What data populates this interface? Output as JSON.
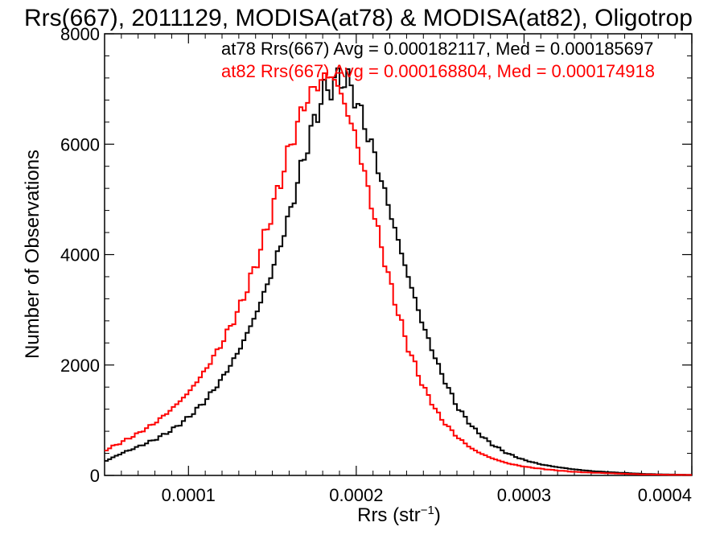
{
  "chart_data": {
    "type": "step",
    "title": "Rrs(667), 2011129, MODISA(at78) & MODISA(at82), Oligotrop",
    "xlabel": "Rrs (str",
    "xlabel_sup": "−1",
    "xlabel_close": ")",
    "ylabel": "Number of Observations",
    "xlim": [
      5e-05,
      0.0004
    ],
    "ylim": [
      0,
      8000
    ],
    "xticks": [
      0.0001,
      0.0002,
      0.0003,
      0.0004
    ],
    "xtick_labels": [
      "0.0001",
      "0.0002",
      "0.0003",
      "0.0004"
    ],
    "yticks": [
      0,
      2000,
      4000,
      6000,
      8000
    ],
    "ytick_labels": [
      "0",
      "2000",
      "4000",
      "6000",
      "8000"
    ],
    "grid": false,
    "annotations": [
      {
        "text": "at78 Rrs(667) Avg = 0.000182117, Med = 0.000185697",
        "color": "#000000"
      },
      {
        "text": "at82 Rrs(667) Avg = 0.000168804, Med = 0.000174918",
        "color": "#ff0000"
      }
    ],
    "series": [
      {
        "color": "#000000",
        "x": [
          5e-05,
          6e-05,
          7e-05,
          8e-05,
          9e-05,
          0.0001,
          0.00011,
          0.00012,
          0.00013,
          0.00014,
          0.00015,
          0.00016,
          0.00017,
          0.00018,
          0.00019,
          0.000195,
          0.0002,
          0.00021,
          0.00022,
          0.00023,
          0.00024,
          0.00025,
          0.00026,
          0.00027,
          0.00028,
          0.00029,
          0.0003,
          0.00031,
          0.00032,
          0.00033,
          0.00034,
          0.00035,
          0.00036,
          0.00037,
          0.00038,
          0.00039,
          0.0004
        ],
        "y": [
          250,
          400,
          520,
          650,
          820,
          1050,
          1350,
          1750,
          2250,
          2900,
          3700,
          4700,
          5900,
          6900,
          7200,
          7150,
          6800,
          5900,
          4800,
          3700,
          2700,
          1900,
          1250,
          850,
          580,
          400,
          280,
          200,
          150,
          110,
          80,
          60,
          45,
          30,
          20,
          15,
          10
        ]
      },
      {
        "color": "#ff0000",
        "x": [
          5e-05,
          6e-05,
          7e-05,
          8e-05,
          9e-05,
          0.0001,
          0.00011,
          0.00012,
          0.00013,
          0.00014,
          0.00015,
          0.00016,
          0.00017,
          0.00018,
          0.000185,
          0.00019,
          0.0002,
          0.00021,
          0.00022,
          0.00023,
          0.00024,
          0.00025,
          0.00026,
          0.00027,
          0.00028,
          0.00029,
          0.0003,
          0.00031,
          0.00032,
          0.00033,
          0.00034,
          0.00035,
          0.00036,
          0.00037,
          0.00038,
          0.00039,
          0.0004
        ],
        "y": [
          450,
          600,
          760,
          950,
          1200,
          1500,
          1900,
          2400,
          3000,
          3800,
          4800,
          5900,
          6800,
          7200,
          7250,
          7000,
          6100,
          4800,
          3500,
          2400,
          1600,
          1050,
          700,
          460,
          320,
          220,
          160,
          120,
          90,
          65,
          50,
          40,
          30,
          20,
          15,
          10,
          8
        ]
      }
    ]
  }
}
